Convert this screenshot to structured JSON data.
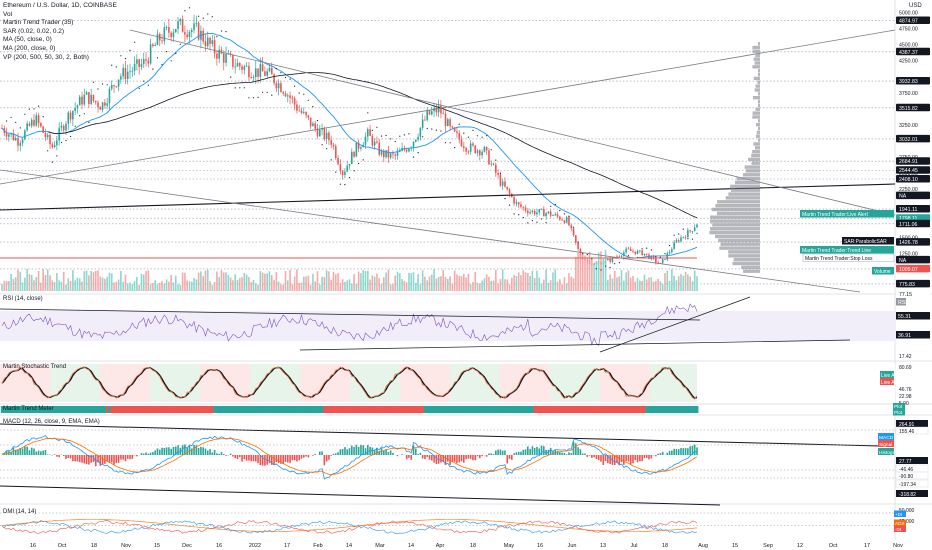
{
  "header": {
    "symbol": "Ethereum / U.S. Dollar, 1D, COINBASE",
    "indicators": [
      "Vol",
      "Martin Trend Trader (35)",
      "SAR (0.02, 0.02, 0.2)",
      "MA (50, close, 0)",
      "MA (200, close, 0)",
      "VP (200, 500, 50, 30, 2, Both)"
    ],
    "currency": "USD"
  },
  "panes": {
    "rsi_label": "RSI (14, close)",
    "stoch_label": "Martin Stochastic Trend",
    "trend_label": "Martin Trend Meter",
    "macd_label": "MACD (12, 26, close, 9, EMA, EMA)",
    "dmi_label": "DMI (14, 14)"
  },
  "colors": {
    "up": "#26a69a",
    "down": "#ef5350",
    "ma50": "#2196f3",
    "ma200": "#131722",
    "sar": "#131722",
    "vp": "#9598a1",
    "stoch_red_zone": "#fde7e7",
    "stoch_green_zone": "#e6f4ea"
  },
  "chart_data": [
    {
      "type": "candlestick",
      "title": "Ethereum / U.S. Dollar, 1D, COINBASE",
      "x_ticks": [
        "16",
        "Oct",
        "18",
        "Nov",
        "15",
        "Dec",
        "16",
        "2022",
        "17",
        "Feb",
        "14",
        "Mar",
        "14",
        "Apr",
        "18",
        "May",
        "16",
        "Jun",
        "13",
        "Jul",
        "18",
        "Aug",
        "15",
        "Sep",
        "12",
        "Oct",
        "17",
        "Nov"
      ],
      "ylim": [
        650,
        5100
      ],
      "y_ticks": [
        5000,
        4750,
        4500,
        4250,
        3750,
        3500,
        3250,
        2750,
        2500,
        2250,
        1750,
        1500,
        1250,
        1000,
        750
      ],
      "price_labels": [
        {
          "text": "4874.97"
        },
        {
          "text": "4387.37"
        },
        {
          "text": "3932.83"
        },
        {
          "text": "3515.82"
        },
        {
          "text": "3032.01"
        },
        {
          "text": "2684.91"
        },
        {
          "text": "2544.45"
        },
        {
          "text": "2408.10"
        },
        {
          "text": "1941.11"
        },
        {
          "text": "1798.11"
        },
        {
          "text": "02:44:46"
        },
        {
          "text": "1711.06"
        },
        {
          "text": "1426.78"
        },
        {
          "text": "NA"
        },
        {
          "text": "NA"
        },
        {
          "text": "1009.07"
        },
        {
          "text": "775.83"
        },
        {
          "text": "77.15"
        }
      ],
      "overlay_labels": [
        "Martin Trend Trader:Live Alert",
        "SAR:ParabolicSAR",
        "Martin Trend Trader:Trend Line",
        "Martin Trend Trader:Stop Loss",
        "Volume"
      ],
      "last_close": 1798.11
    },
    {
      "type": "line",
      "title": "RSI (14, close)",
      "price_labels": [
        {
          "text": "RSI"
        },
        {
          "text": "55.31"
        },
        {
          "text": "36.91"
        }
      ]
    },
    {
      "type": "line",
      "title": "Martin Stochastic Trend",
      "price_labels": [
        {
          "text": "17.42"
        },
        {
          "text": "80.69"
        },
        {
          "text": "Live Alert"
        },
        {
          "text": "Live Alert"
        },
        {
          "text": "46.76"
        },
        {
          "text": "22.98"
        },
        {
          "text": "5.00"
        }
      ]
    },
    {
      "type": "bar",
      "title": "Martin Trend Meter",
      "price_labels": [
        {
          "text": "Plot"
        },
        {
          "text": "Plot"
        }
      ]
    },
    {
      "type": "bar",
      "title": "MACD (12, 26, close, 9, EMA, EMA)",
      "price_labels": [
        {
          "text": "264.91"
        },
        {
          "text": "155.46"
        },
        {
          "text": "MACD"
        },
        {
          "text": "Signal"
        },
        {
          "text": "Histogram"
        },
        {
          "text": "27.77"
        },
        {
          "text": "-46.46"
        },
        {
          "text": "-90.80"
        },
        {
          "text": "-197.34"
        },
        {
          "text": "-318.82"
        }
      ]
    },
    {
      "type": "line",
      "title": "DMI (14, 14)",
      "price_labels": [
        {
          "text": "50.000"
        },
        {
          "text": "+DI"
        },
        {
          "text": "25.000"
        },
        {
          "text": "ADX"
        },
        {
          "text": "-DI"
        }
      ]
    }
  ]
}
